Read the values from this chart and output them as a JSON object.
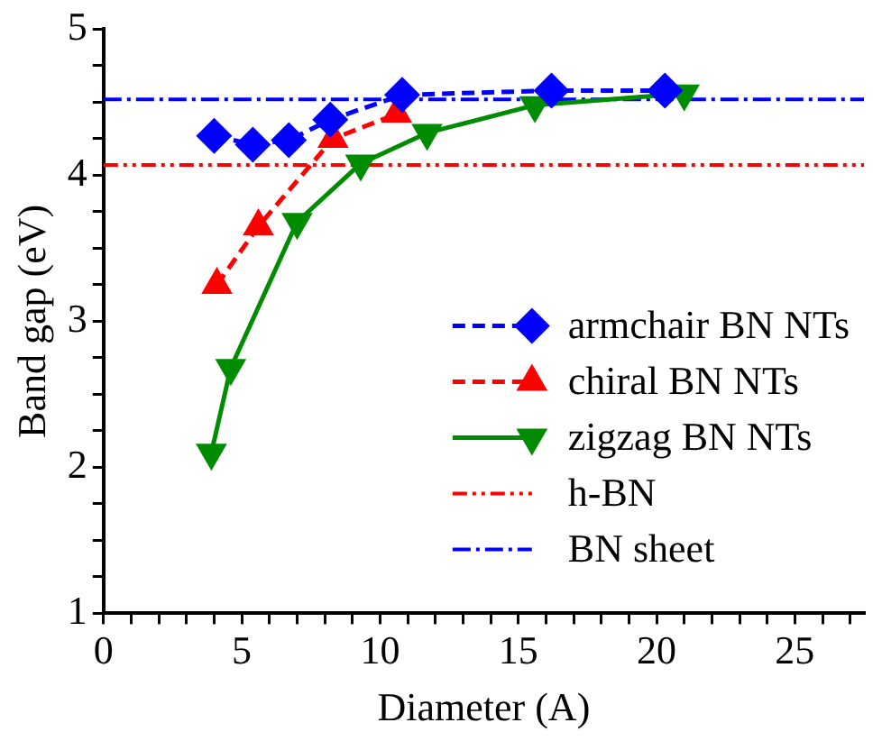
{
  "chart_data": {
    "type": "line",
    "xlabel": "Diameter (A)",
    "ylabel": "Band gap (eV)",
    "xlim": [
      0,
      27.5
    ],
    "xticks": [
      0,
      {
        "value": 1,
        "label": null
      },
      {
        "value": 2,
        "label": null
      },
      {
        "value": 3,
        "label": null
      },
      {
        "value": 4,
        "label": null
      },
      5,
      {
        "value": 6,
        "label": null
      },
      {
        "value": 7,
        "label": null
      },
      {
        "value": 8,
        "label": null
      },
      {
        "value": 9,
        "label": null
      },
      10,
      {
        "value": 11,
        "label": null
      },
      {
        "value": 12,
        "label": null
      },
      {
        "value": 13,
        "label": null
      },
      {
        "value": 14,
        "label": null
      },
      15,
      {
        "value": 16,
        "label": null
      },
      {
        "value": 17,
        "label": null
      },
      {
        "value": 18,
        "label": null
      },
      {
        "value": 19,
        "label": null
      },
      20,
      {
        "value": 21,
        "label": null
      },
      {
        "value": 22,
        "label": null
      },
      {
        "value": 23,
        "label": null
      },
      {
        "value": 24,
        "label": null
      },
      25,
      {
        "value": 26,
        "label": null
      },
      {
        "value": 27,
        "label": null
      }
    ],
    "ylim": [
      1,
      5
    ],
    "yticks": [
      1,
      {
        "value": 1.25,
        "label": null
      },
      {
        "value": 1.5,
        "label": null
      },
      {
        "value": 1.75,
        "label": null
      },
      2,
      {
        "value": 2.25,
        "label": null
      },
      {
        "value": 2.5,
        "label": null
      },
      {
        "value": 2.75,
        "label": null
      },
      3,
      {
        "value": 3.25,
        "label": null
      },
      {
        "value": 3.5,
        "label": null
      },
      {
        "value": 3.75,
        "label": null
      },
      4,
      {
        "value": 4.25,
        "label": null
      },
      {
        "value": 4.5,
        "label": null
      },
      {
        "value": 4.75,
        "label": null
      },
      5
    ],
    "legend": "bottom right",
    "series": [
      {
        "name": "armchair BN NTs",
        "color": "#0000ff",
        "marker": "diamond",
        "line_style": "dashed",
        "x": [
          4.0,
          5.4,
          6.7,
          8.2,
          10.8,
          16.2,
          20.3
        ],
        "values": [
          4.27,
          4.21,
          4.24,
          4.38,
          4.55,
          4.58,
          4.58
        ]
      },
      {
        "name": "chiral BN NTs",
        "color": "#ff0000",
        "marker": "triangle",
        "line_style": "dashed",
        "x": [
          4.1,
          5.6,
          8.3,
          10.6
        ],
        "values": [
          3.25,
          3.65,
          4.25,
          4.42
        ]
      },
      {
        "name": "zigzag BN NTs",
        "color": "#008c00",
        "marker": "triangle-down",
        "line_style": "solid",
        "x": [
          3.9,
          4.6,
          7.0,
          9.3,
          11.7,
          15.6,
          21.0
        ],
        "values": [
          2.1,
          2.68,
          3.68,
          4.08,
          4.29,
          4.48,
          4.56
        ]
      }
    ],
    "ref_lines": [
      {
        "axis": "y",
        "value": 4.07,
        "label": "h-BN",
        "color": "#ff0000",
        "line_style": "dash-dot-dot"
      },
      {
        "axis": "y",
        "value": 4.52,
        "label": "BN sheet",
        "color": "#0000ff",
        "line_style": "dash-dot"
      }
    ]
  }
}
